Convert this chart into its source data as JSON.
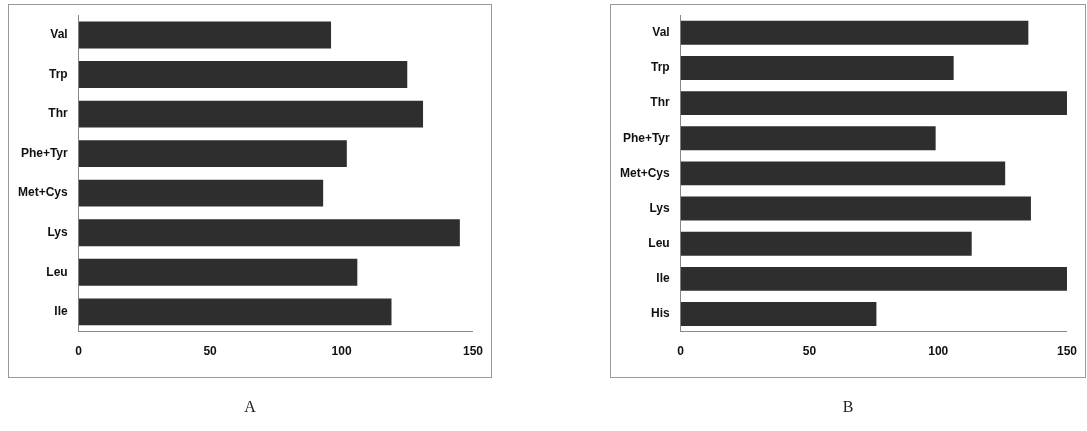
{
  "chart_data": [
    {
      "type": "bar",
      "orientation": "horizontal",
      "title": "A",
      "categories": [
        "Val",
        "Trp",
        "Thr",
        "Phe+Tyr",
        "Met+Cys",
        "Lys",
        "Leu",
        "Ile"
      ],
      "values": [
        96,
        125,
        131,
        102,
        93,
        145,
        106,
        119
      ],
      "color": "#2e2e2e",
      "xlim": [
        0,
        150
      ],
      "xticks": [
        0,
        50,
        100,
        150
      ],
      "grid": false,
      "legend": false
    },
    {
      "type": "bar",
      "orientation": "horizontal",
      "title": "B",
      "categories": [
        "Val",
        "Trp",
        "Thr",
        "Phe+Tyr",
        "Met+Cys",
        "Lys",
        "Leu",
        "Ile",
        "His"
      ],
      "values": [
        135,
        106,
        150,
        99,
        126,
        136,
        113,
        150,
        76
      ],
      "color": "#2e2e2e",
      "xlim": [
        0,
        150
      ],
      "xticks": [
        0,
        50,
        100,
        150
      ],
      "grid": false,
      "legend": false
    }
  ]
}
